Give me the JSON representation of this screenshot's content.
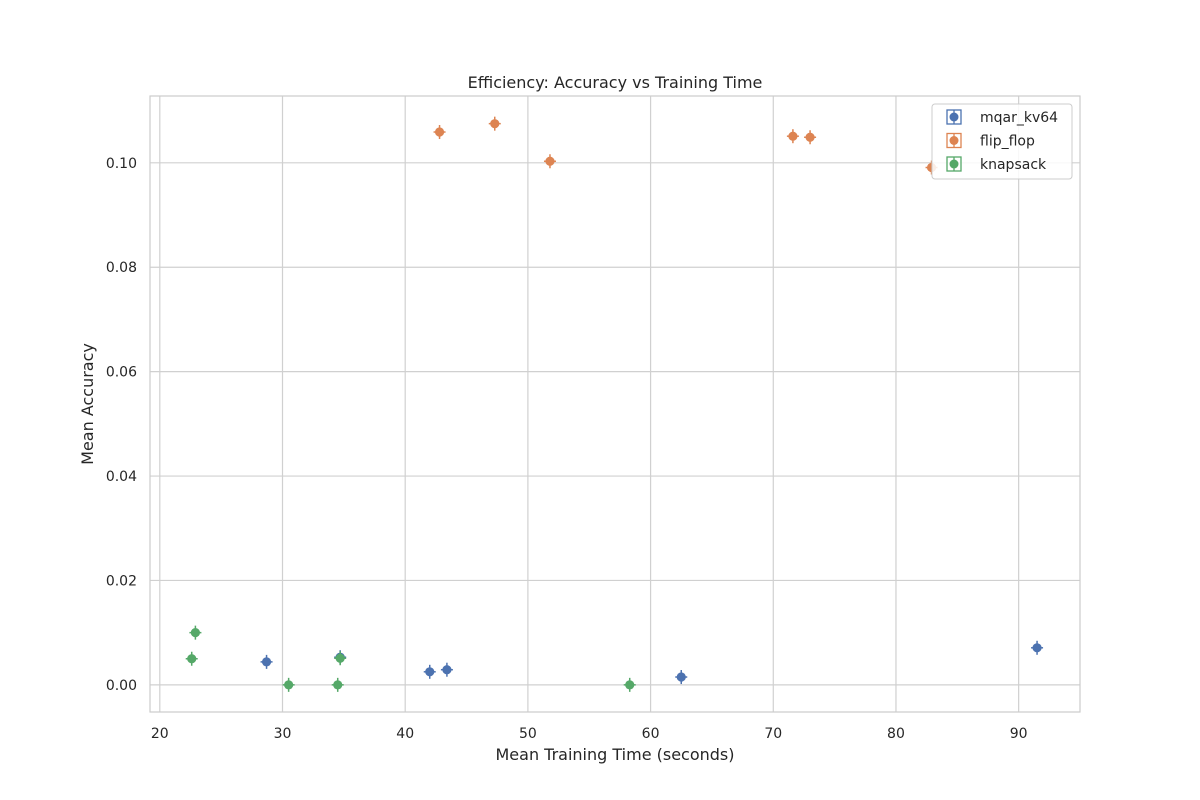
{
  "chart_data": {
    "type": "scatter",
    "title": "Efficiency: Accuracy vs Training Time",
    "xlabel": "Mean Training Time (seconds)",
    "ylabel": "Mean Accuracy",
    "xlim": [
      19.2,
      95
    ],
    "ylim": [
      -0.0052,
      0.1128
    ],
    "xticks": [
      20,
      30,
      40,
      50,
      60,
      70,
      80,
      90
    ],
    "xtick_labels": [
      "20",
      "30",
      "40",
      "50",
      "60",
      "70",
      "80",
      "90"
    ],
    "yticks": [
      0.0,
      0.02,
      0.04,
      0.06,
      0.08,
      0.1
    ],
    "ytick_labels": [
      "0.00",
      "0.02",
      "0.04",
      "0.06",
      "0.08",
      "0.10"
    ],
    "grid": true,
    "legend_position": "top-right",
    "series": [
      {
        "name": "mqar_kv64",
        "color": "#4c72b0",
        "points": [
          {
            "x": 28.7,
            "y": 0.0044
          },
          {
            "x": 34.7,
            "y": 0.0053
          },
          {
            "x": 42.0,
            "y": 0.0025
          },
          {
            "x": 43.4,
            "y": 0.0029
          },
          {
            "x": 62.5,
            "y": 0.0015
          },
          {
            "x": 91.5,
            "y": 0.0071
          }
        ]
      },
      {
        "name": "flip_flop",
        "color": "#dd8452",
        "points": [
          {
            "x": 42.8,
            "y": 0.1059
          },
          {
            "x": 47.3,
            "y": 0.1075
          },
          {
            "x": 51.8,
            "y": 0.1003
          },
          {
            "x": 71.6,
            "y": 0.1051
          },
          {
            "x": 73.0,
            "y": 0.1049
          },
          {
            "x": 82.9,
            "y": 0.0991
          }
        ]
      },
      {
        "name": "knapsack",
        "color": "#55a868",
        "points": [
          {
            "x": 22.6,
            "y": 0.005
          },
          {
            "x": 22.9,
            "y": 0.01
          },
          {
            "x": 30.5,
            "y": 0.0
          },
          {
            "x": 34.5,
            "y": 0.0
          },
          {
            "x": 34.7,
            "y": 0.0051
          },
          {
            "x": 58.3,
            "y": 0.0
          }
        ]
      }
    ]
  }
}
